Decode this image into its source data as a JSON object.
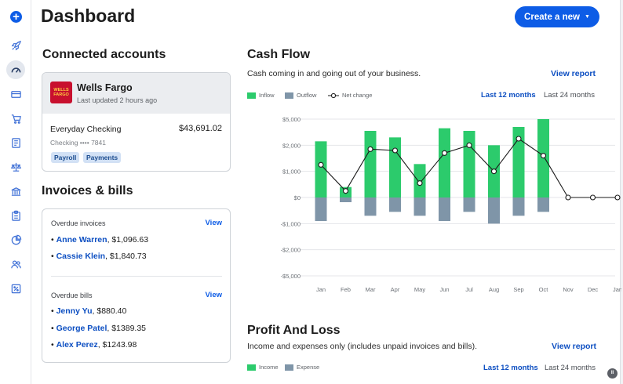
{
  "app": {
    "title": "Dashboard",
    "create_label": "Create a new"
  },
  "sidebar": {
    "items": [
      {
        "icon": "plus-icon"
      },
      {
        "icon": "rocket-icon"
      },
      {
        "icon": "dashboard-icon",
        "active": true
      },
      {
        "icon": "card-icon"
      },
      {
        "icon": "cart-icon"
      },
      {
        "icon": "document-icon"
      },
      {
        "icon": "scale-icon"
      },
      {
        "icon": "bank-icon"
      },
      {
        "icon": "clipboard-icon"
      },
      {
        "icon": "pie-chart-icon"
      },
      {
        "icon": "people-icon"
      },
      {
        "icon": "percent-icon"
      }
    ]
  },
  "accounts": {
    "title": "Connected accounts",
    "bank_name": "Wells Fargo",
    "bank_logo_text": "WELLS FARGO",
    "updated": "Last updated 2 hours ago",
    "account_name": "Everyday Checking",
    "balance": "$43,691.02",
    "account_number": "Checking •••• 7841",
    "tags": [
      "Payroll",
      "Payments"
    ]
  },
  "invoices": {
    "title": "Invoices & bills",
    "overdue_invoices_label": "Overdue invoices",
    "overdue_bills_label": "Overdue bills",
    "view_label": "View",
    "invoices": [
      {
        "name": "Anne Warren",
        "amount": ", $1,096.63"
      },
      {
        "name": "Cassie Klein",
        "amount": ", $1,840.73"
      }
    ],
    "bills": [
      {
        "name": "Jenny Yu",
        "amount": ", $880.40"
      },
      {
        "name": "George Patel",
        "amount": ", $1389.35"
      },
      {
        "name": "Alex Perez",
        "amount": ", $1243.98"
      }
    ]
  },
  "cashflow": {
    "title": "Cash Flow",
    "description": "Cash coming in and going out of your business.",
    "view_report": "View report",
    "legend": {
      "inflow": "Inflow",
      "outflow": "Outflow",
      "net": "Net change"
    },
    "range_12": "Last 12 months",
    "range_24": "Last 24 months",
    "colors": {
      "inflow": "#2ccb6c",
      "outflow": "#7f95a8",
      "net": "#1a1a1a",
      "grid": "#e4e6ea"
    }
  },
  "chart_data": {
    "type": "bar",
    "categories": [
      "Jan",
      "Feb",
      "Mar",
      "Apr",
      "May",
      "Jun",
      "Jul",
      "Aug",
      "Sep",
      "Oct",
      "Nov",
      "Dec",
      "Jan"
    ],
    "y_tick_labels": [
      "$5,000",
      "$2,000",
      "$1,000",
      "$0",
      "-$1,000",
      "-$2,000",
      "-$5,000"
    ],
    "series": [
      {
        "name": "Inflow",
        "values": [
          2150,
          400,
          2550,
          2300,
          1280,
          2650,
          2550,
          2000,
          2700,
          3000,
          0,
          0,
          0
        ]
      },
      {
        "name": "Outflow",
        "values": [
          -900,
          -180,
          -700,
          -550,
          -700,
          -900,
          -550,
          -1000,
          -700,
          -550,
          0,
          0,
          0
        ]
      },
      {
        "name": "Net change",
        "values": [
          1250,
          250,
          1850,
          1800,
          550,
          1700,
          2000,
          1000,
          2250,
          1600,
          0,
          0,
          0
        ]
      }
    ],
    "ylim": [
      -3000,
      3000
    ],
    "grid": true,
    "legend_position": "top-left"
  },
  "pnl": {
    "title": "Profit And Loss",
    "description": "Income and expenses only (includes unpaid invoices and bills).",
    "view_report": "View report",
    "legend": {
      "income": "Income",
      "expense": "Expense"
    },
    "range_12": "Last 12 months",
    "range_24": "Last 24 months"
  }
}
